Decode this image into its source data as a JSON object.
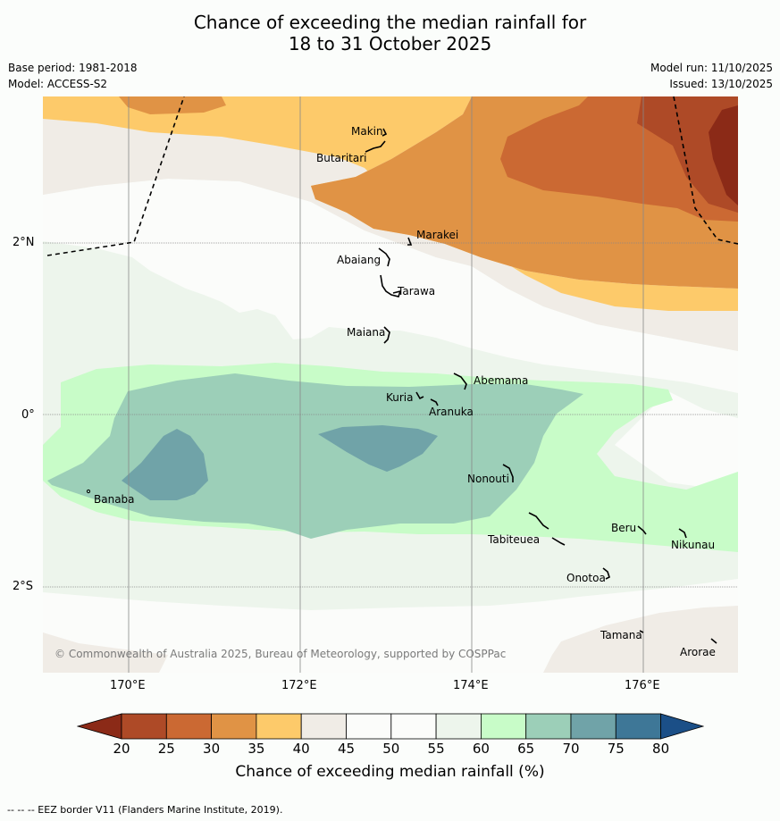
{
  "header": {
    "title_line1": "Chance of exceeding the median rainfall for",
    "title_line2": "18 to 31 October 2025",
    "base_period": "Base period: 1981-2018",
    "model": "Model: ACCESS-S2",
    "model_run": "Model run: 11/10/2025",
    "issued": "Issued: 13/10/2025"
  },
  "map": {
    "lon_ticks": [
      "170°E",
      "172°E",
      "174°E",
      "176°E"
    ],
    "lat_ticks": [
      "2°N",
      "0°",
      "2°S"
    ],
    "copyright": "© Commonwealth of Australia 2025, Bureau of Meteorology, supported by COSPPac",
    "islands": [
      "Makin",
      "Butaritari",
      "Marakei",
      "Abaiang",
      "Tarawa",
      "Maiana",
      "Abemama",
      "Kuria",
      "Aranuka",
      "Nonouti",
      "Banaba",
      "Tabiteuea",
      "Beru",
      "Nikunau",
      "Onotoa",
      "Tamana",
      "Arorae"
    ]
  },
  "legend": {
    "label": "Chance of exceeding median rainfall (%)",
    "ticks": [
      "20",
      "25",
      "30",
      "35",
      "40",
      "45",
      "50",
      "55",
      "60",
      "65",
      "70",
      "75",
      "80"
    ],
    "colors": [
      "#8b2a17",
      "#ae4a27",
      "#cb6933",
      "#e09345",
      "#fdca6a",
      "#f0ece6",
      "#fbfcfa",
      "#fbfcfa",
      "#edf5ec",
      "#c8fcc8",
      "#9ccfb8",
      "#70a3a8",
      "#3e7797",
      "#1b4f87"
    ]
  },
  "footnote": "--  --  -- EEZ border V11 (Flanders Marine Institute, 2019)."
}
